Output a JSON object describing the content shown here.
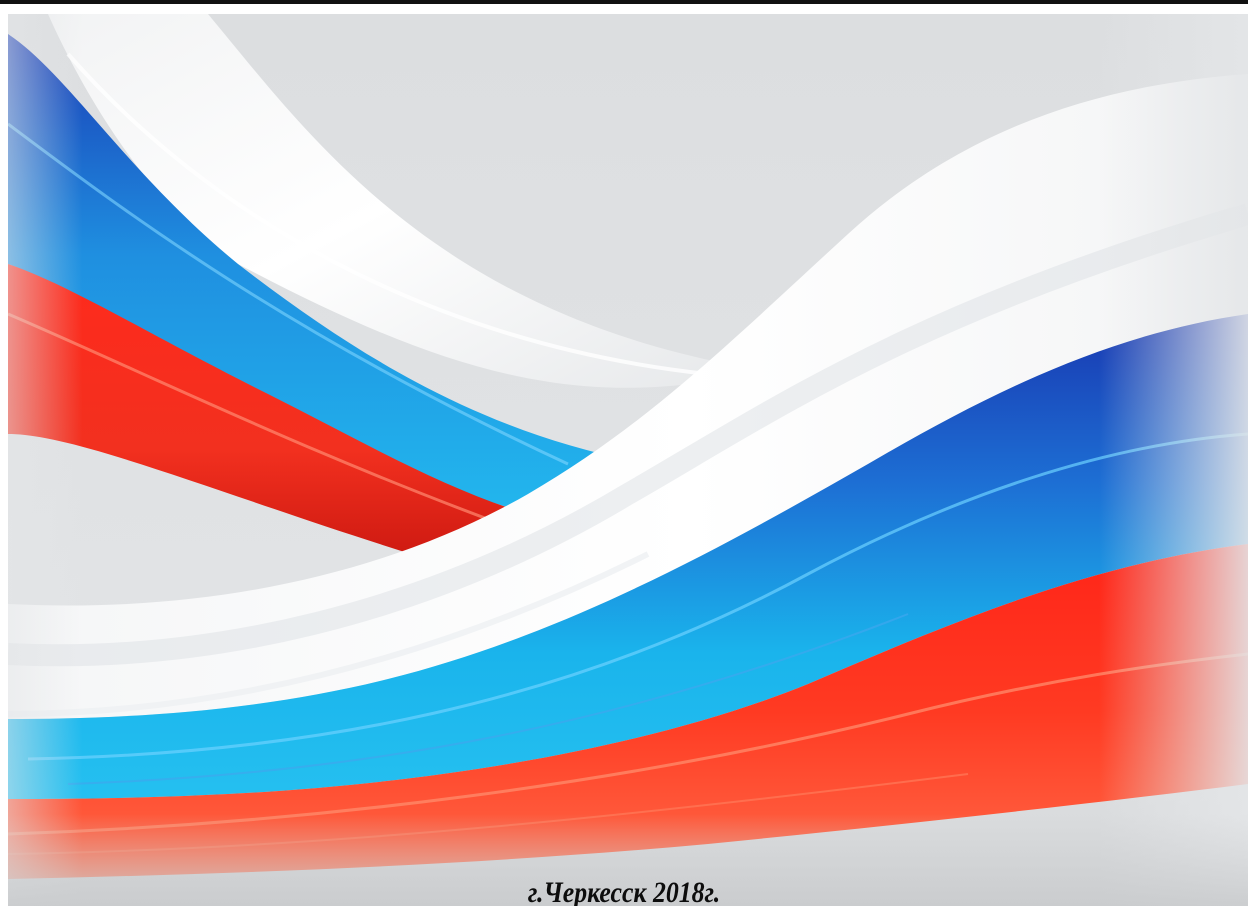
{
  "caption": "г.Черкесск 2018г.",
  "colors": {
    "background": "#dfe1e3",
    "white_band": "#ffffff",
    "blue_dark": "#1c3fb5",
    "blue_light": "#1bb3ea",
    "red": "#ff2a1c",
    "red_light": "#ff5a3a"
  }
}
